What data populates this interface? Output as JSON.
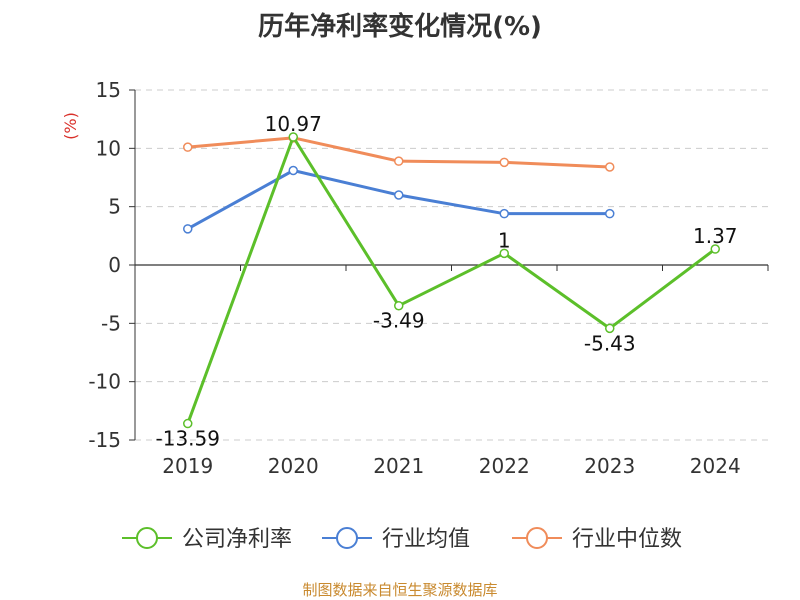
{
  "chart_data": {
    "type": "line",
    "title": "历年净利率变化情况(%)",
    "ylabel": "(%)",
    "xlabel": "",
    "categories": [
      "2019",
      "2020",
      "2021",
      "2022",
      "2023",
      "2024"
    ],
    "ylim": [
      -15,
      15
    ],
    "yticks": [
      "15",
      "10",
      "5",
      "0",
      "-5",
      "-10",
      "-15"
    ],
    "ytick_values": [
      15,
      10,
      5,
      0,
      -5,
      -10,
      -15
    ],
    "grid": "horizontal-dashed",
    "legend_placement": "bottom",
    "series": [
      {
        "name": "公司净利率",
        "color": "#5cbf2a",
        "values": [
          -13.59,
          10.97,
          -3.49,
          1,
          -5.43,
          1.37
        ],
        "labels": [
          "-13.59",
          "10.97",
          "-3.49",
          "1",
          "-5.43",
          "1.37"
        ]
      },
      {
        "name": "行业均值",
        "color": "#4a7fd4",
        "values": [
          3.1,
          8.1,
          6.0,
          4.4,
          4.4,
          null
        ]
      },
      {
        "name": "行业中位数",
        "color": "#f08c5a",
        "values": [
          10.1,
          10.9,
          8.9,
          8.8,
          8.4,
          null
        ]
      }
    ]
  },
  "source_note": "制图数据来自恒生聚源数据库"
}
